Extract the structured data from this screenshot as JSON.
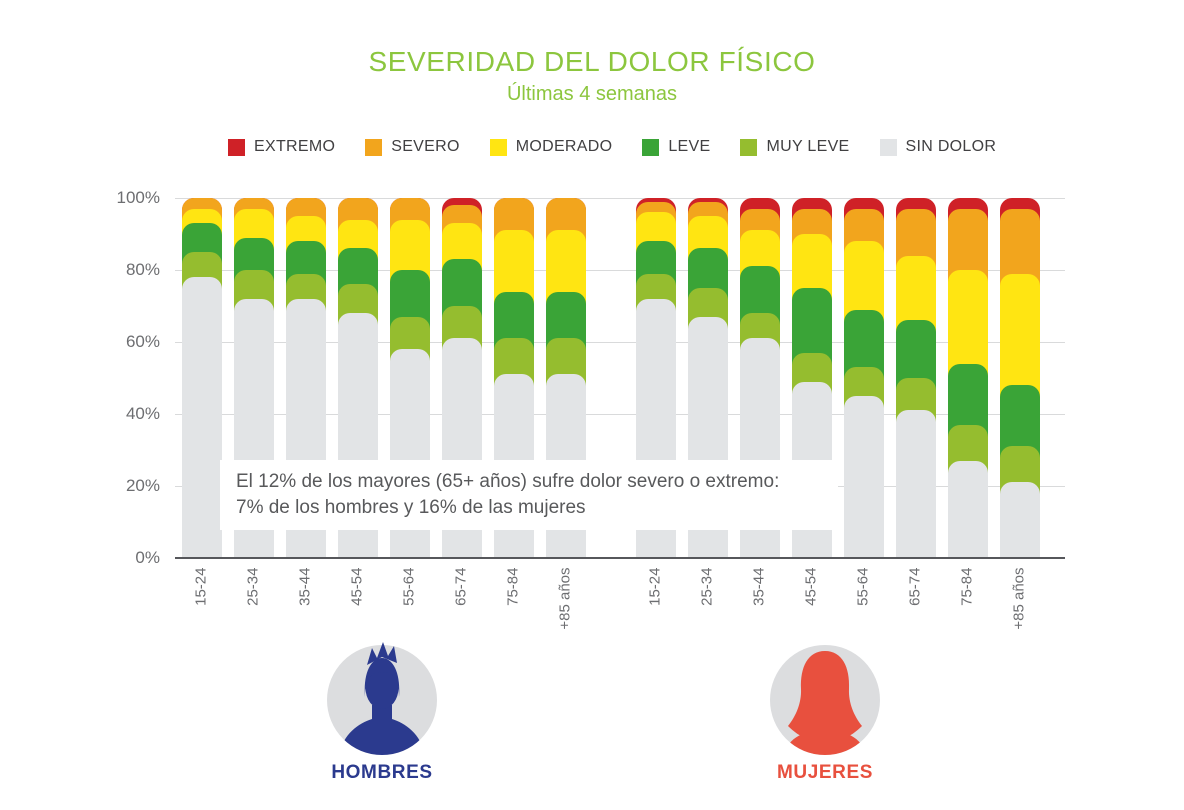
{
  "title": "SEVERIDAD DEL DOLOR FÍSICO",
  "subtitle": "Últimas 4 semanas",
  "annotation": {
    "line1": "El 12% de los mayores (65+ años) sufre dolor severo o extremo:",
    "line2": "7% de los hombres y 16% de las mujeres"
  },
  "footer": {
    "hombres_label": "HOMBRES",
    "mujeres_label": "MUJERES"
  },
  "colors": {
    "title_green": "#8cc63e",
    "hombres_navy": "#2b3a8e",
    "mujeres_coral": "#e8503e",
    "avatar_circle_gray": "#dcdddf"
  },
  "chart_data": {
    "type": "bar",
    "stacked": true,
    "units": "percent",
    "title": "SEVERIDAD DEL DOLOR FÍSICO",
    "subtitle": "Últimas 4 semanas",
    "grid": true,
    "ylim": [
      0,
      100
    ],
    "y_ticks": [
      {
        "label": "100%",
        "value": 100
      },
      {
        "label": "80%",
        "value": 80
      },
      {
        "label": "60%",
        "value": 60
      },
      {
        "label": "40%",
        "value": 40
      },
      {
        "label": "20%",
        "value": 20
      },
      {
        "label": "0%",
        "value": 0
      }
    ],
    "categories": [
      "15-24",
      "25-34",
      "35-44",
      "45-54",
      "55-64",
      "65-74",
      "75-84",
      "+85 años"
    ],
    "legend": [
      {
        "name": "EXTREMO",
        "color": "#cf2127"
      },
      {
        "name": "SEVERO",
        "color": "#f2a51d"
      },
      {
        "name": "MODERADO",
        "color": "#ffe512"
      },
      {
        "name": "LEVE",
        "color": "#3aa437"
      },
      {
        "name": "MUY LEVE",
        "color": "#95bd2f"
      },
      {
        "name": "SIN DOLOR",
        "color": "#e2e4e6"
      }
    ],
    "series_order_bottom_to_top": [
      "SIN DOLOR",
      "MUY LEVE",
      "LEVE",
      "MODERADO",
      "SEVERO",
      "EXTREMO"
    ],
    "groups": [
      {
        "name": "HOMBRES",
        "series": [
          {
            "name": "SIN DOLOR",
            "color": "#e2e4e6",
            "values": [
              78,
              72,
              72,
              68,
              58,
              61,
              51,
              51
            ]
          },
          {
            "name": "MUY LEVE",
            "color": "#95bd2f",
            "values": [
              7,
              8,
              7,
              8,
              9,
              9,
              10,
              10
            ]
          },
          {
            "name": "LEVE",
            "color": "#3aa437",
            "values": [
              8,
              9,
              9,
              10,
              13,
              13,
              13,
              13
            ]
          },
          {
            "name": "MODERADO",
            "color": "#ffe512",
            "values": [
              4,
              8,
              7,
              8,
              14,
              10,
              17,
              17
            ]
          },
          {
            "name": "SEVERO",
            "color": "#f2a51d",
            "values": [
              3,
              3,
              5,
              6,
              6,
              5,
              9,
              9
            ]
          },
          {
            "name": "EXTREMO",
            "color": "#cf2127",
            "values": [
              0,
              0,
              0,
              0,
              0,
              2,
              0,
              0
            ]
          }
        ]
      },
      {
        "name": "MUJERES",
        "series": [
          {
            "name": "SIN DOLOR",
            "color": "#e2e4e6",
            "values": [
              72,
              67,
              61,
              49,
              45,
              41,
              27,
              21
            ]
          },
          {
            "name": "MUY LEVE",
            "color": "#95bd2f",
            "values": [
              7,
              8,
              7,
              8,
              8,
              9,
              10,
              10
            ]
          },
          {
            "name": "LEVE",
            "color": "#3aa437",
            "values": [
              9,
              11,
              13,
              18,
              16,
              16,
              17,
              17
            ]
          },
          {
            "name": "MODERADO",
            "color": "#ffe512",
            "values": [
              8,
              9,
              10,
              15,
              19,
              18,
              26,
              31
            ]
          },
          {
            "name": "SEVERO",
            "color": "#f2a51d",
            "values": [
              3,
              4,
              6,
              7,
              9,
              13,
              17,
              18
            ]
          },
          {
            "name": "EXTREMO",
            "color": "#cf2127",
            "values": [
              1,
              1,
              3,
              3,
              3,
              3,
              3,
              3
            ]
          }
        ]
      }
    ]
  }
}
